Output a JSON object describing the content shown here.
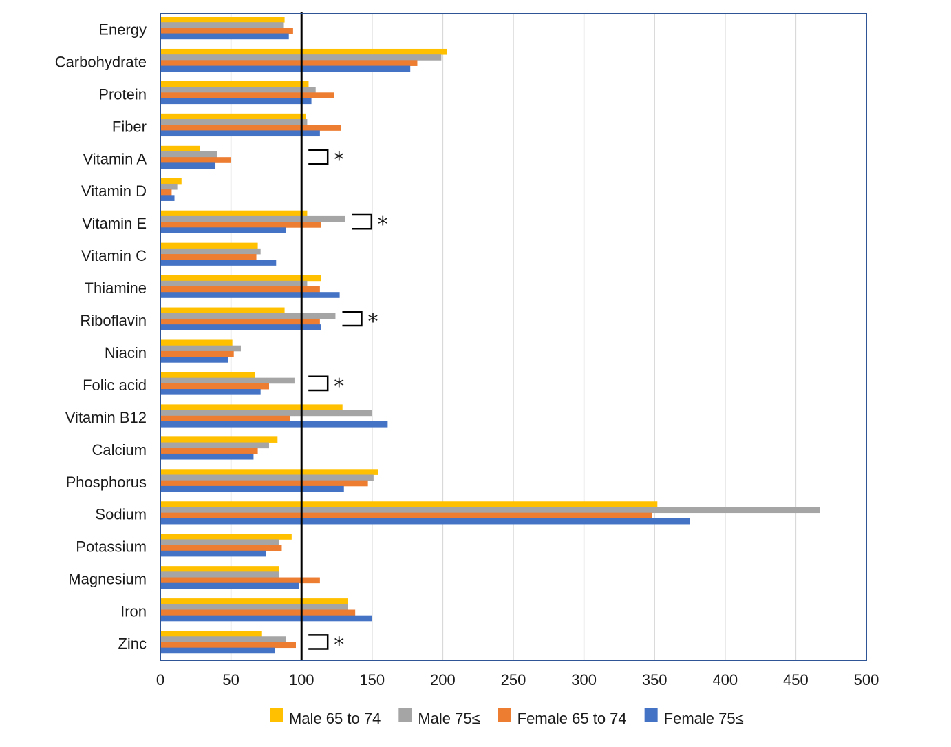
{
  "chart_data": {
    "type": "bar",
    "orientation": "horizontal",
    "title": "",
    "xlabel": "",
    "ylabel": "",
    "xlim": [
      0,
      500
    ],
    "x_ticks": [
      "0",
      "50",
      "100",
      "150",
      "200",
      "250",
      "300",
      "350",
      "400",
      "450",
      "500"
    ],
    "grid": true,
    "reference_line": 100,
    "legend_position": "bottom",
    "categories": [
      "Energy",
      "Carbohydrate",
      "Protein",
      "Fiber",
      "Vitamin A",
      "Vitamin D",
      "Vitamin E",
      "Vitamin C",
      "Thiamine",
      "Riboflavin",
      "Niacin",
      "Folic acid",
      "Vitamin B12",
      "Calcium",
      "Phosphorus",
      "Sodium",
      "Potassium",
      "Magnesium",
      "Iron",
      "Zinc"
    ],
    "series": [
      {
        "name": "Male 65 to 74",
        "color": "#ffc000",
        "values": [
          88,
          203,
          105,
          103,
          28,
          15,
          104,
          69,
          114,
          88,
          51,
          67,
          129,
          83,
          154,
          352,
          93,
          84,
          133,
          72
        ]
      },
      {
        "name": "Male 75≤",
        "color": "#a5a5a5",
        "values": [
          87,
          199,
          110,
          104,
          40,
          12,
          131,
          71,
          104,
          124,
          57,
          95,
          150,
          77,
          151,
          467,
          84,
          84,
          133,
          89
        ]
      },
      {
        "name": "Female 65 to 74",
        "color": "#ed7d31",
        "values": [
          94,
          182,
          123,
          128,
          50,
          8,
          114,
          68,
          113,
          113,
          52,
          77,
          92,
          69,
          147,
          348,
          86,
          113,
          138,
          96
        ]
      },
      {
        "name": "Female 75≤",
        "color": "#4472c4",
        "values": [
          91,
          177,
          107,
          113,
          39,
          10,
          89,
          82,
          127,
          114,
          48,
          71,
          161,
          66,
          130,
          375,
          75,
          98,
          150,
          81
        ]
      }
    ],
    "annotations": [
      {
        "category": "Vitamin A",
        "text": "*"
      },
      {
        "category": "Vitamin E",
        "text": "*"
      },
      {
        "category": "Riboflavin",
        "text": "*"
      },
      {
        "category": "Folic acid",
        "text": "*"
      },
      {
        "category": "Zinc",
        "text": "*"
      }
    ]
  }
}
